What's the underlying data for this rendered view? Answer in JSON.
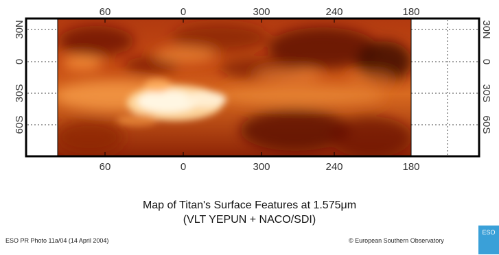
{
  "map": {
    "lon_ticks_top": [
      "60",
      "0",
      "300",
      "240",
      "180"
    ],
    "lon_ticks_bottom": [
      "60",
      "0",
      "300",
      "240",
      "180"
    ],
    "lat_ticks_left": [
      "30N",
      "0",
      "30S",
      "60S"
    ],
    "lat_ticks_right": [
      "30N",
      "0",
      "30S",
      "60S"
    ],
    "colors": {
      "frame": "#000000",
      "surface_dark": "#3a0a00",
      "surface_mid": "#b83a0a",
      "surface_bright": "#fff6e0",
      "grid": "#333333"
    }
  },
  "caption": {
    "title": "Map of Titan's Surface Features at 1.575μm",
    "subtitle": "(VLT YEPUN + NACO/SDI)"
  },
  "footer": {
    "left": "ESO PR Photo 11a/04 (14 April 2004)",
    "right": "© European Southern Observatory",
    "logo_text": "ESO"
  }
}
